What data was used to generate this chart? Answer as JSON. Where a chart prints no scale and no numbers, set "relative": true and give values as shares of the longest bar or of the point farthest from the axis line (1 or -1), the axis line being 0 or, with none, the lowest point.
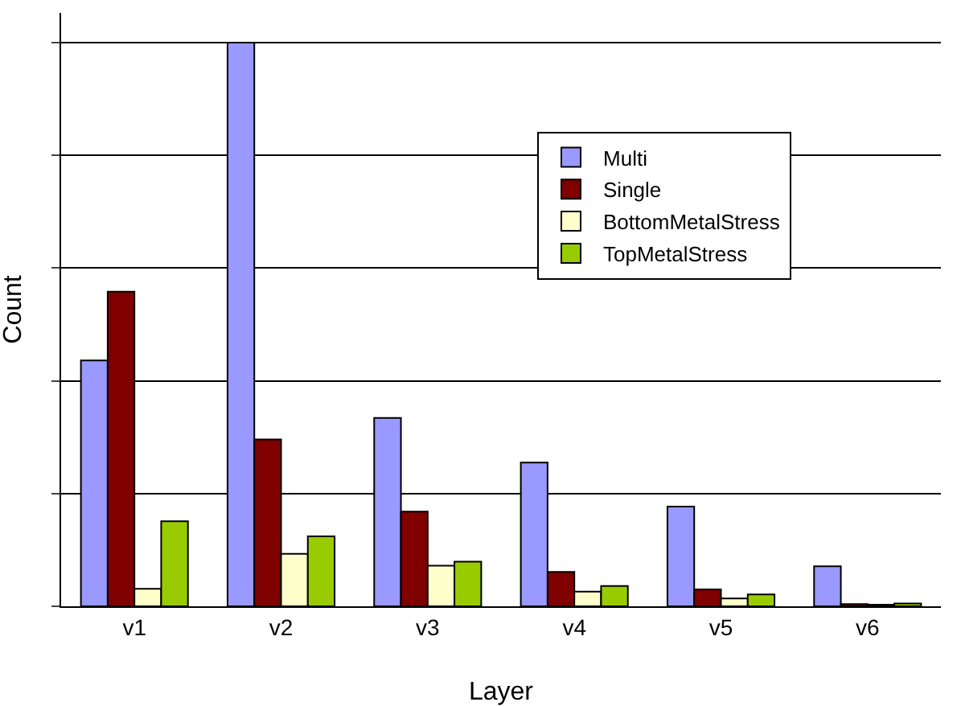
{
  "chart_data": {
    "type": "bar",
    "xlabel": "Layer",
    "ylabel": "Count",
    "relative": true,
    "grid": "y",
    "legend": "top right",
    "categories": [
      "v1",
      "v2",
      "v3",
      "v4",
      "v5",
      "v6"
    ],
    "series": [
      {
        "name": "Multi",
        "color": "#9999ff",
        "values": [
          0.436,
          1,
          0.334,
          0.255,
          0.177,
          0.071
        ]
      },
      {
        "name": "Single",
        "color": "#800000",
        "values": [
          0.558,
          0.296,
          0.168,
          0.061,
          0.03,
          0.004
        ]
      },
      {
        "name": "BottomMetalStress",
        "color": "#ffffcc",
        "values": [
          0.031,
          0.093,
          0.072,
          0.026,
          0.014,
          0.003
        ]
      },
      {
        "name": "TopMetalStress",
        "color": "#99cc00",
        "values": [
          0.151,
          0.124,
          0.079,
          0.036,
          0.021,
          0.005
        ]
      }
    ]
  }
}
